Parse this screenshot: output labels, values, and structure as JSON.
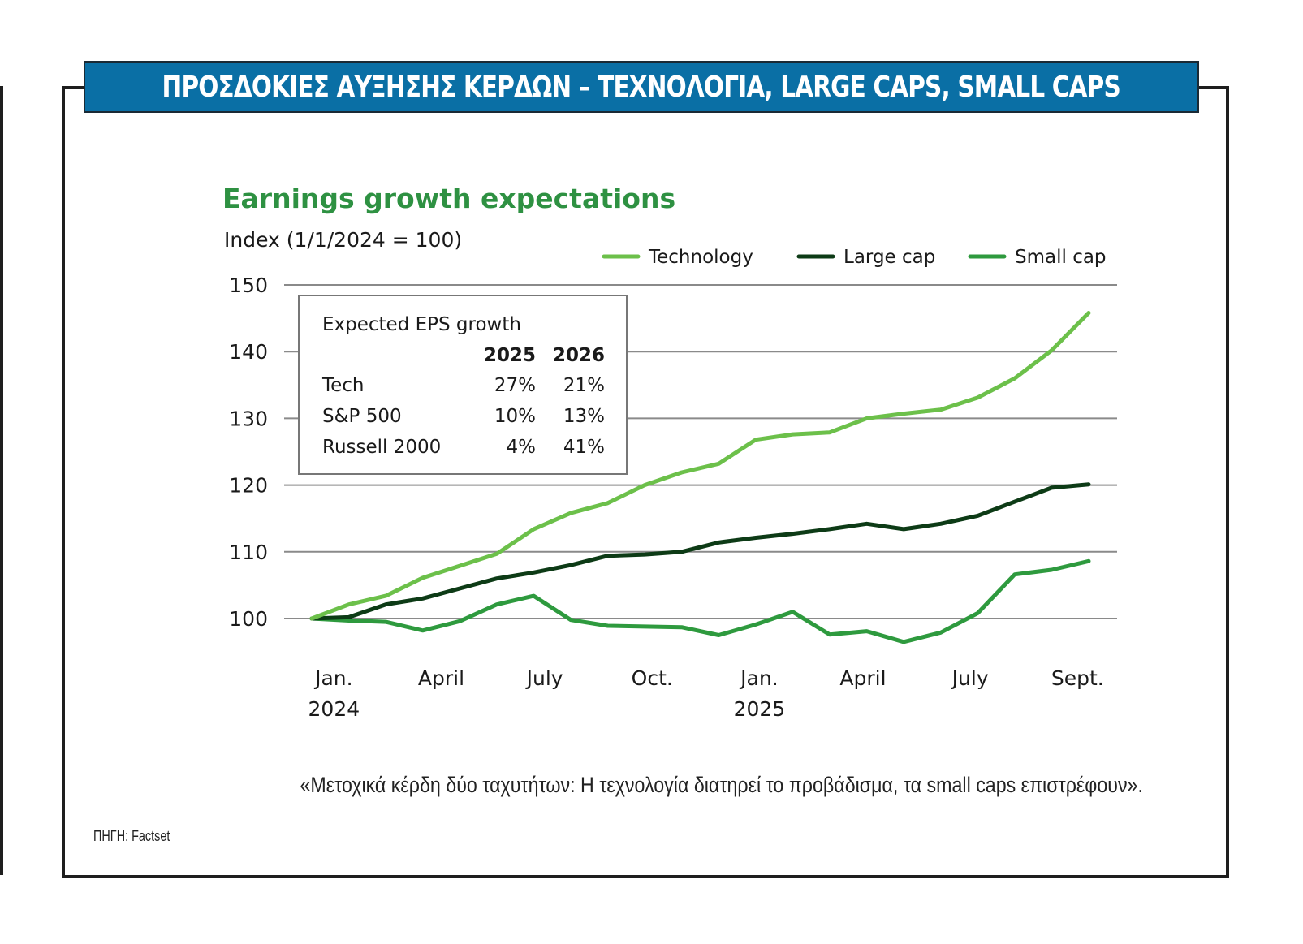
{
  "banner": {
    "title": "ΠΡΟΣΔΟΚΙΕΣ ΑΥΞΗΣΗΣ ΚΕΡΔΩΝ – ΤΕΧΝΟΛΟΓΙΑ, LARGE CAPS, SMALL CAPS",
    "color": "#0a6fa5"
  },
  "caption": "«Μετοχικά κέρδη δύο ταχυτήτων: Η τεχνολογία διατηρεί το προβάδισμα, τα small caps επιστρέφουν».",
  "source": "ΠΗΓΗ: Factset",
  "chart_data": {
    "type": "line",
    "title": "Earnings growth expectations",
    "subtitle": "Index (1/1/2024 = 100)",
    "xlabel": "",
    "ylabel": "",
    "ylim": [
      95,
      150
    ],
    "yticks": [
      100,
      110,
      120,
      130,
      140,
      150
    ],
    "grid": true,
    "legend_position": "top-right",
    "x_tick_labels": [
      {
        "label": "Jan.",
        "sublabel": "2024",
        "index": 0.6
      },
      {
        "label": "April",
        "sublabel": "",
        "index": 3.5
      },
      {
        "label": "July",
        "sublabel": "",
        "index": 6.3
      },
      {
        "label": "Oct.",
        "sublabel": "",
        "index": 9.2
      },
      {
        "label": "Jan.",
        "sublabel": "2025",
        "index": 12.1
      },
      {
        "label": "April",
        "sublabel": "",
        "index": 14.9
      },
      {
        "label": "July",
        "sublabel": "",
        "index": 17.8
      },
      {
        "label": "Sept.",
        "sublabel": "",
        "index": 20.7
      }
    ],
    "series": [
      {
        "name": "Technology",
        "color": "#6cc04a",
        "values": [
          100,
          102.1,
          103.4,
          106.1,
          107.9,
          109.7,
          113.4,
          115.8,
          117.3,
          120.0,
          121.9,
          123.2,
          126.8,
          127.6,
          127.9,
          130.0,
          130.7,
          131.3,
          133.1,
          136.0,
          140.2,
          145.8
        ]
      },
      {
        "name": "Large cap",
        "color": "#0d3b16",
        "values": [
          100,
          100.2,
          102.1,
          103.0,
          104.5,
          106.0,
          106.9,
          108.0,
          109.4,
          109.6,
          110.0,
          111.4,
          112.1,
          112.7,
          113.4,
          114.2,
          113.4,
          114.2,
          115.4,
          117.5,
          119.6,
          120.1
        ]
      },
      {
        "name": "Small cap",
        "color": "#2e9a3e",
        "values": [
          100,
          99.7,
          99.5,
          98.2,
          99.6,
          102.1,
          103.4,
          99.8,
          98.9,
          98.8,
          98.7,
          97.5,
          99.1,
          101.0,
          97.6,
          98.1,
          96.5,
          97.9,
          100.8,
          106.6,
          107.3,
          108.6
        ]
      }
    ],
    "inset_table": {
      "title": "Expected EPS growth",
      "columns": [
        "",
        "2025",
        "2026"
      ],
      "rows": [
        [
          "Tech",
          "27%",
          "21%"
        ],
        [
          "S&P 500",
          "10%",
          "13%"
        ],
        [
          "Russell 2000",
          "4%",
          "41%"
        ]
      ]
    }
  }
}
